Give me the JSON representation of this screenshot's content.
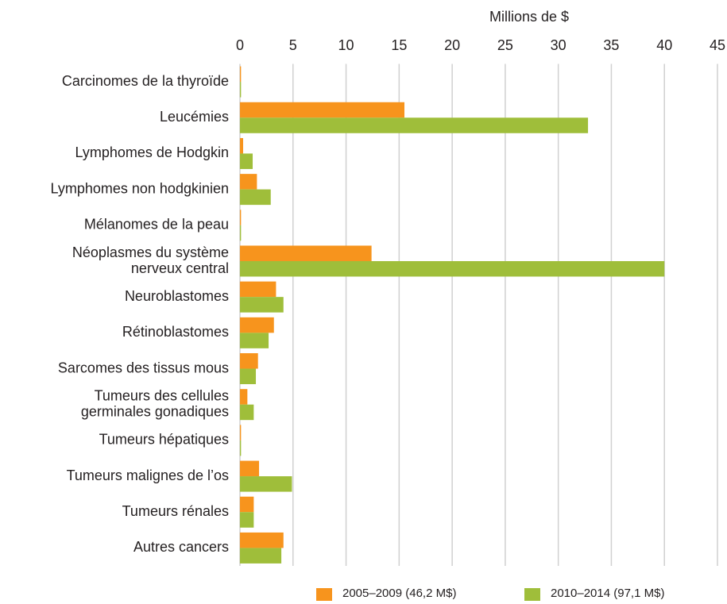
{
  "chart_data": {
    "type": "hbar",
    "title": "Millions de $",
    "categories": [
      "Carcinomes de la thyroïde",
      "Leucémies",
      "Lymphomes de Hodgkin",
      "Lymphomes non hodgkinien",
      "Mélanomes de la peau",
      "Néoplasmes du système\nnerveux central",
      "Neuroblastomes",
      "Rétinoblastomes",
      "Sarcomes des tissus mous",
      "Tumeurs des cellules\ngerminales gonadiques",
      "Tumeurs hépatiques",
      "Tumeurs malignes de l’os",
      "Tumeurs rénales",
      "Autres cancers"
    ],
    "series": [
      {
        "name": "2005–2009 (46,2 M$)",
        "color": "#f7941d",
        "values": [
          0.1,
          15.5,
          0.3,
          1.6,
          0.1,
          12.4,
          3.4,
          3.2,
          1.7,
          0.7,
          0.1,
          1.8,
          1.3,
          4.1
        ]
      },
      {
        "name": "2010–2014 (97,1 M$)",
        "color": "#9fbe3a",
        "values": [
          0.1,
          32.8,
          1.2,
          2.9,
          0.1,
          40,
          4.1,
          2.7,
          1.5,
          1.3,
          0.1,
          4.9,
          1.3,
          3.9
        ]
      }
    ],
    "xlim": [
      0,
      45
    ],
    "xticks": [
      0,
      5,
      10,
      15,
      20,
      25,
      30,
      35,
      40,
      45
    ],
    "grid": true,
    "legend": "bottom"
  }
}
